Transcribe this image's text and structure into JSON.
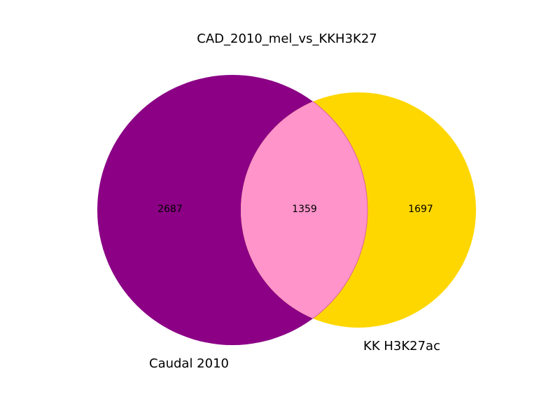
{
  "chart_data": {
    "type": "venn",
    "title": "CAD_2010_mel_vs_KKH3K27",
    "sets": [
      {
        "name": "Caudal 2010",
        "only": 2687,
        "color": "#8b0085"
      },
      {
        "name": "KK H3K27ac",
        "only": 1697,
        "color": "#ffd700"
      }
    ],
    "intersection": {
      "value": 1359,
      "color": "#ff94cb"
    }
  }
}
